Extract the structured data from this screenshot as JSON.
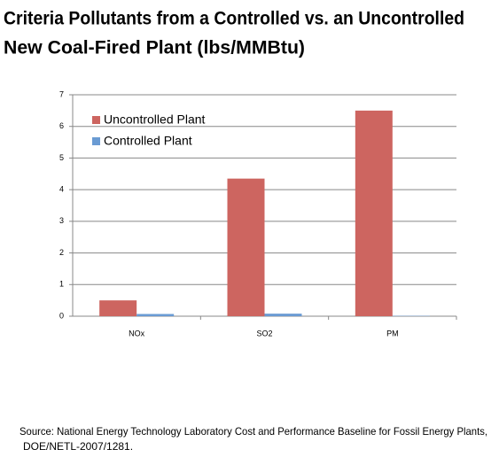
{
  "chart_data": {
    "type": "bar",
    "title": [
      "Criteria Pollutants from a Controlled vs. an Uncontrolled",
      "New Coal-Fired Plant  (lbs/MMBtu)"
    ],
    "categories": [
      "NOx",
      "SO2",
      "PM"
    ],
    "series": [
      {
        "name": "Uncontrolled Plant",
        "color": "#cd6560",
        "values": [
          0.5,
          4.35,
          6.5
        ]
      },
      {
        "name": "Controlled Plant",
        "color": "#6a9bd3",
        "values": [
          0.07,
          0.08,
          0.01
        ]
      }
    ],
    "ylim": [
      0,
      7
    ],
    "yticks": [
      0,
      1,
      2,
      3,
      4,
      5,
      6,
      7
    ],
    "grid": true,
    "legend": "top-left",
    "source": [
      "Source: National  Energy Technology Laboratory Cost and Performance Baseline for Fossil Energy Plants,",
      "DOE/NETL-2007/1281."
    ]
  }
}
